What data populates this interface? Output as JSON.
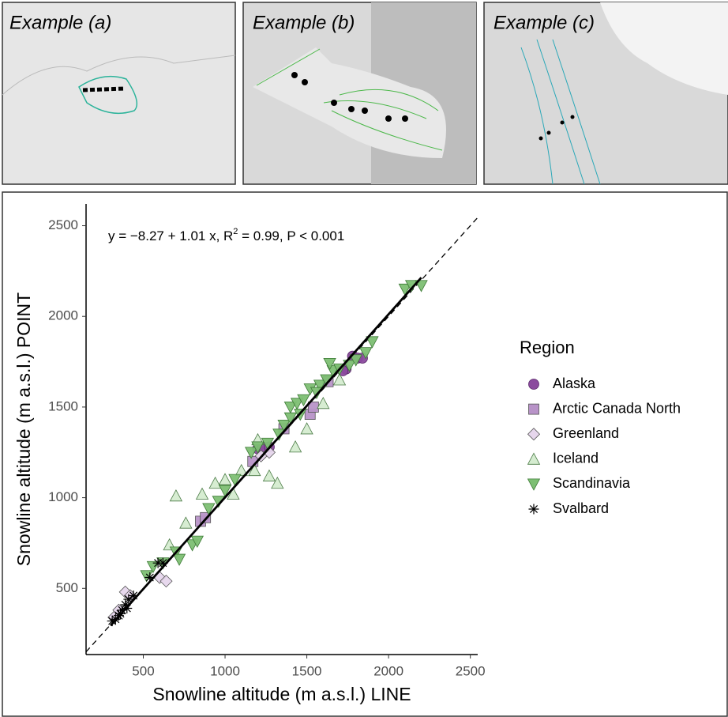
{
  "maps": [
    {
      "label": "Example (a)"
    },
    {
      "label": "Example (b)"
    },
    {
      "label": "Example (c)"
    }
  ],
  "chart_data": {
    "type": "scatter",
    "annotation": [
      "y = −8.27 + 1.01 x, R",
      "2",
      " = 0.99, P < 0.001"
    ],
    "x_label": "Snowline altitude (m a.s.l.) LINE",
    "y_label": "Snowline altitude (m a.s.l.) POINT",
    "legend_title": "Region",
    "xlim": [
      150,
      2545
    ],
    "ylim": [
      135,
      2620
    ],
    "xticks": [
      500,
      1000,
      1500,
      2000,
      2500
    ],
    "yticks": [
      500,
      1000,
      1500,
      2000,
      2500
    ],
    "fit": {
      "intercept": -8.27,
      "slope": 1.01,
      "x_range": [
        300,
        2200
      ]
    },
    "reference_line": {
      "intercept": 0,
      "slope": 1
    },
    "series": [
      {
        "name": "Alaska",
        "marker": "circle",
        "color": "#8b4a9e",
        "x": [
          1200,
          1230,
          1270,
          1780,
          1810,
          1840,
          1740,
          1720
        ],
        "values": [
          1270,
          1280,
          1280,
          1780,
          1770,
          1770,
          1710,
          1700
        ]
      },
      {
        "name": "Arctic Canada North",
        "marker": "square",
        "color": "#b893c8",
        "x": [
          850,
          880,
          1360,
          1520,
          1540,
          1630,
          1170
        ],
        "values": [
          870,
          890,
          1380,
          1460,
          1500,
          1640,
          1200
        ]
      },
      {
        "name": "Greenland",
        "marker": "diamond",
        "color": "#e6d6ec",
        "x": [
          390,
          420,
          350,
          320,
          600,
          640,
          1220,
          1270
        ],
        "values": [
          480,
          460,
          380,
          340,
          560,
          540,
          1230,
          1250
        ]
      },
      {
        "name": "Iceland",
        "marker": "triangle-up",
        "color": "#d5ecd0",
        "x": [
          660,
          760,
          860,
          940,
          1000,
          1050,
          1100,
          1180,
          1270,
          1320,
          1430,
          1500,
          1600,
          1700,
          1200,
          700
        ],
        "values": [
          740,
          860,
          1020,
          1080,
          1100,
          1020,
          1150,
          1150,
          1120,
          1080,
          1280,
          1380,
          1520,
          1650,
          1320,
          1010
        ]
      },
      {
        "name": "Scandinavia",
        "marker": "triangle-down",
        "color": "#7dbf73",
        "x": [
          520,
          560,
          620,
          700,
          720,
          800,
          830,
          900,
          960,
          1000,
          1060,
          1160,
          1200,
          1260,
          1330,
          1360,
          1400,
          1440,
          1480,
          1520,
          1580,
          1620,
          1660,
          1700,
          1760,
          1800,
          1860,
          1900,
          2100,
          2140,
          2200,
          1400,
          1460,
          1560,
          1640
        ],
        "values": [
          570,
          620,
          640,
          700,
          660,
          740,
          760,
          940,
          980,
          1040,
          1100,
          1250,
          1280,
          1300,
          1350,
          1400,
          1500,
          1520,
          1540,
          1600,
          1620,
          1650,
          1700,
          1710,
          1730,
          1760,
          1800,
          1860,
          2150,
          2170,
          2170,
          1440,
          1460,
          1580,
          1740
        ]
      },
      {
        "name": "Svalbard",
        "marker": "asterisk",
        "color": "#000000",
        "x": [
          310,
          330,
          350,
          370,
          390,
          410,
          440,
          540,
          590,
          620,
          400,
          360
        ],
        "values": [
          320,
          330,
          350,
          380,
          410,
          440,
          460,
          560,
          640,
          640,
          390,
          360
        ]
      }
    ]
  }
}
